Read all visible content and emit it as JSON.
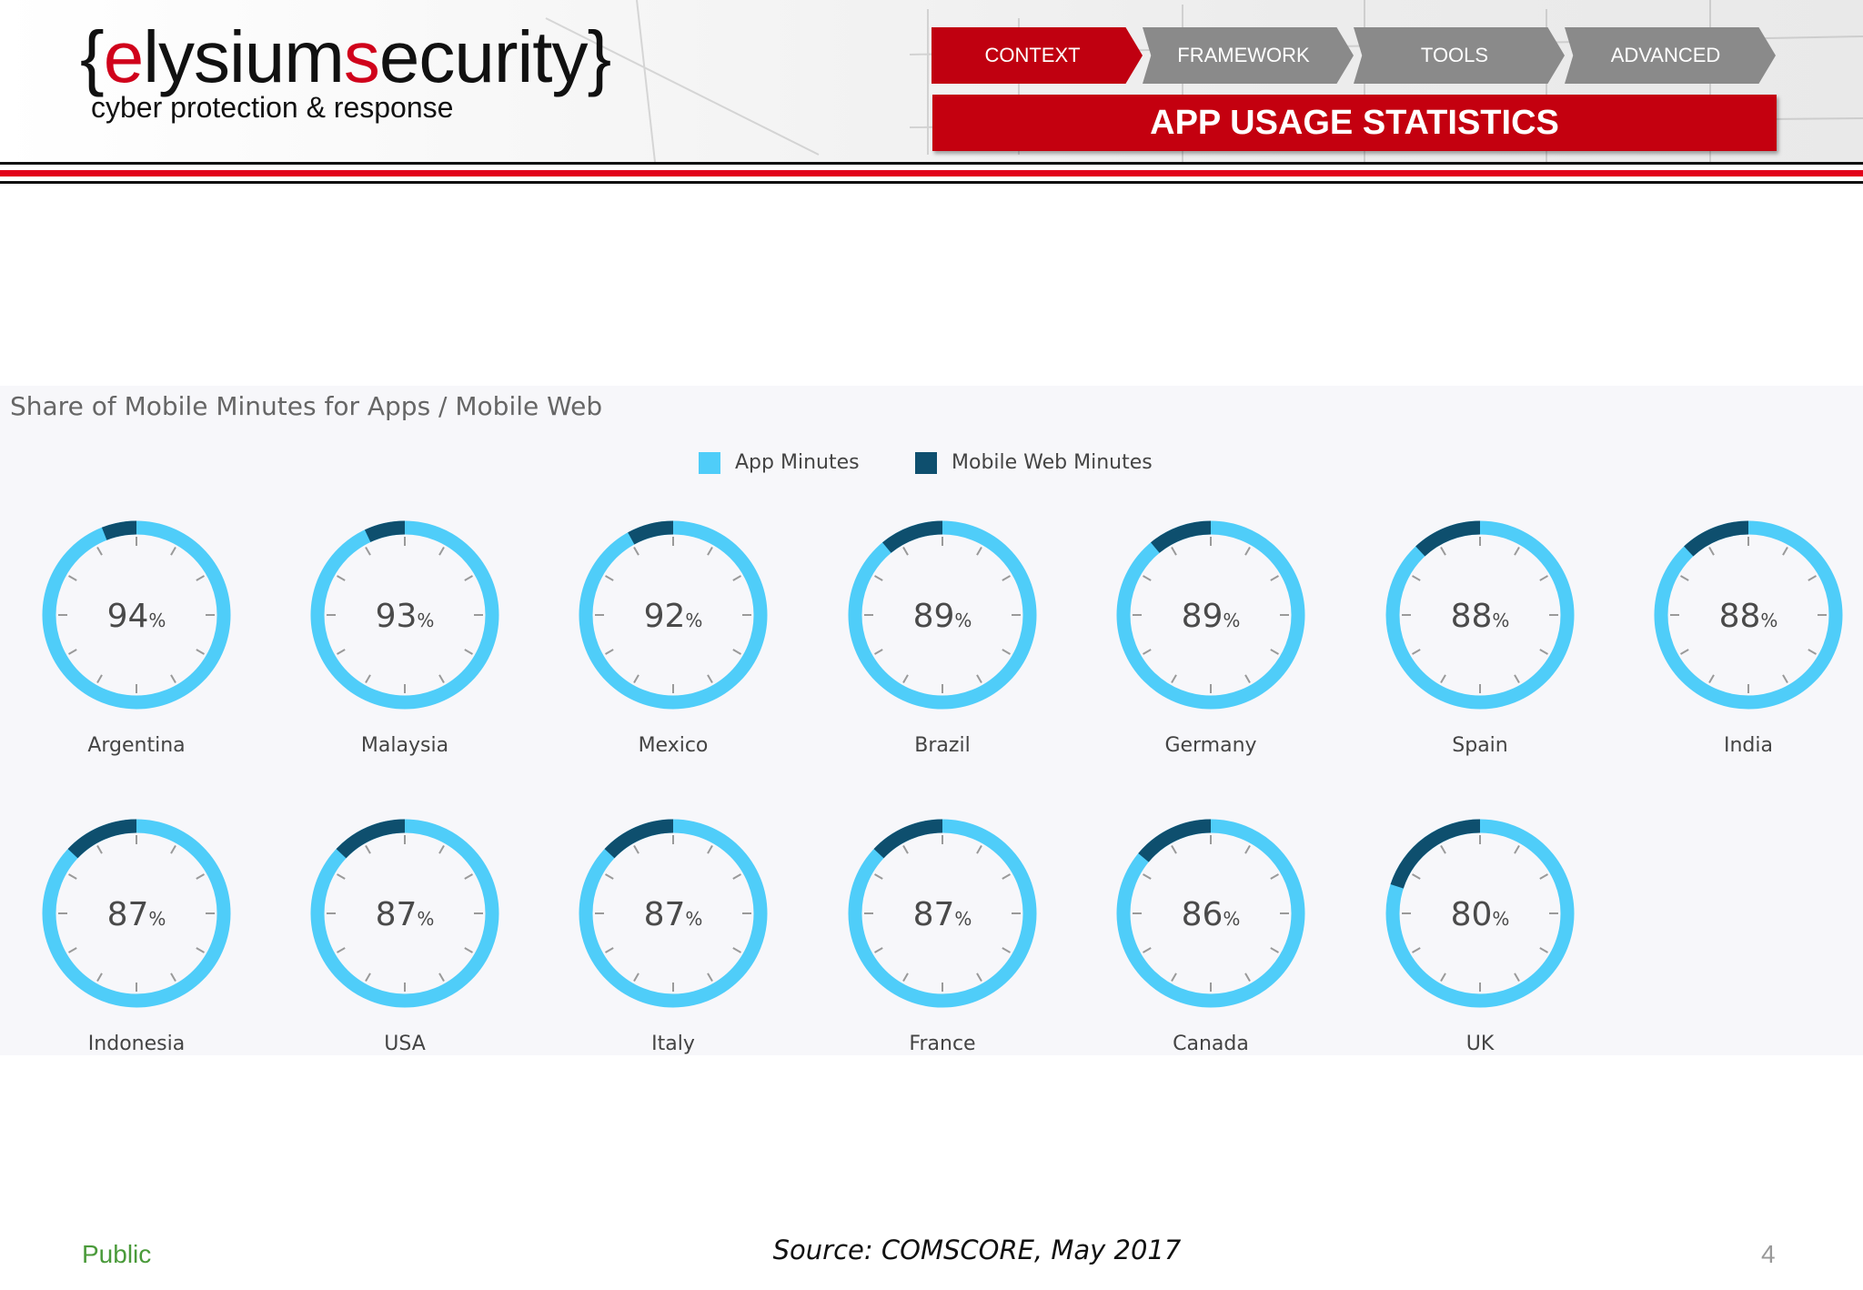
{
  "brand": {
    "logo_open": "{",
    "logo_e": "e",
    "logo_lysium": "lysium",
    "logo_s": "s",
    "logo_ecurity": "ecurity",
    "logo_close": "}",
    "tagline": "cyber protection & response"
  },
  "nav": {
    "items": [
      {
        "label": "CONTEXT",
        "active": true
      },
      {
        "label": "FRAMEWORK",
        "active": false
      },
      {
        "label": "TOOLS",
        "active": false
      },
      {
        "label": "ADVANCED",
        "active": false
      }
    ],
    "banner": "APP USAGE STATISTICS"
  },
  "colors": {
    "app": "#4fcdf9",
    "web": "#0e4f6e",
    "accent": "#c4000f"
  },
  "chart_data": {
    "type": "pie",
    "title": "Share of Mobile Minutes for Apps / Mobile Web",
    "legend": [
      "App Minutes",
      "Mobile Web Minutes"
    ],
    "legend_placement": "top-center",
    "unit": "%",
    "categories": [
      "Argentina",
      "Malaysia",
      "Mexico",
      "Brazil",
      "Germany",
      "Spain",
      "India",
      "Indonesia",
      "USA",
      "Italy",
      "France",
      "Canada",
      "UK"
    ],
    "series": [
      {
        "name": "App Minutes",
        "values": [
          94,
          93,
          92,
          89,
          89,
          88,
          88,
          87,
          87,
          87,
          87,
          86,
          80
        ]
      },
      {
        "name": "Mobile Web Minutes",
        "values": [
          6,
          7,
          8,
          11,
          11,
          12,
          12,
          13,
          13,
          13,
          13,
          14,
          20
        ]
      }
    ]
  },
  "footer": {
    "classification": "Public",
    "source": "Source: COMSCORE, May 2017",
    "page": "4"
  }
}
